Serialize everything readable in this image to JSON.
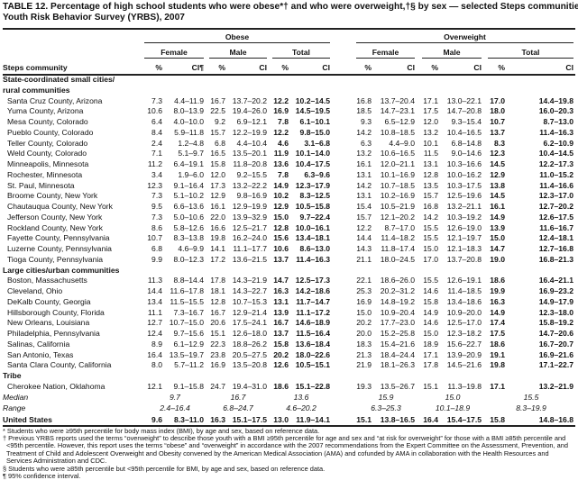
{
  "title": {
    "line1": "TABLE 12. Percentage of high school students who were obese*† and who were overweight,†§ by sex — selected Steps communities,",
    "line2": "Youth Risk Behavior Survey (YRBS), 2007"
  },
  "header": {
    "obese": "Obese",
    "overweight": "Overweight",
    "female": "Female",
    "male": "Male",
    "total": "Total",
    "row_label": "Steps community",
    "pct": "%",
    "ci_first": "CI¶",
    "ci": "CI"
  },
  "sections": [
    {
      "label_lines": [
        "State-coordinated small cities/",
        "rural communities"
      ],
      "rows": [
        {
          "name": "Santa Cruz County, Arizona",
          "values": [
            "7.3",
            "4.4–11.9",
            "16.7",
            "13.7–20.2",
            "12.2",
            "10.2–14.5",
            "16.8",
            "13.7–20.4",
            "17.1",
            "13.0–22.1",
            "17.0",
            "14.4–19.8"
          ]
        },
        {
          "name": "Yuma County, Arizona",
          "values": [
            "10.6",
            "8.0–13.9",
            "22.5",
            "19.4–26.0",
            "16.9",
            "14.5–19.5",
            "18.5",
            "14.7–23.1",
            "17.5",
            "14.7–20.8",
            "18.0",
            "16.0–20.3"
          ]
        },
        {
          "name": "Mesa County, Colorado",
          "values": [
            "6.4",
            "4.0–10.0",
            "9.2",
            "6.9–12.1",
            "7.8",
            "6.1–10.1",
            "9.3",
            "6.5–12.9",
            "12.0",
            "9.3–15.4",
            "10.7",
            "8.7–13.0"
          ]
        },
        {
          "name": "Pueblo County, Colorado",
          "values": [
            "8.4",
            "5.9–11.8",
            "15.7",
            "12.2–19.9",
            "12.2",
            "9.8–15.0",
            "14.2",
            "10.8–18.5",
            "13.2",
            "10.4–16.5",
            "13.7",
            "11.4–16.3"
          ]
        },
        {
          "name": "Teller County, Colorado",
          "values": [
            "2.4",
            "1.2–4.8",
            "6.8",
            "4.4–10.4",
            "4.6",
            "3.1–6.8",
            "6.3",
            "4.4–9.0",
            "10.1",
            "6.8–14.8",
            "8.3",
            "6.2–10.9"
          ]
        },
        {
          "name": "Weld County, Colorado",
          "values": [
            "7.1",
            "5.1–9.7",
            "16.5",
            "13.5–20.1",
            "11.9",
            "10.1–14.0",
            "13.2",
            "10.6–16.5",
            "11.5",
            "9.0–14.6",
            "12.3",
            "10.4–14.5"
          ]
        },
        {
          "name": "Minneapolis, Minnesota",
          "values": [
            "11.2",
            "6.4–19.1",
            "15.8",
            "11.8–20.8",
            "13.6",
            "10.4–17.5",
            "16.1",
            "12.0–21.1",
            "13.1",
            "10.3–16.6",
            "14.5",
            "12.2–17.3"
          ]
        },
        {
          "name": "Rochester, Minnesota",
          "values": [
            "3.4",
            "1.9–6.0",
            "12.0",
            "9.2–15.5",
            "7.8",
            "6.3–9.6",
            "13.1",
            "10.1–16.9",
            "12.8",
            "10.0–16.2",
            "12.9",
            "11.0–15.2"
          ]
        },
        {
          "name": "St. Paul, Minnesota",
          "values": [
            "12.3",
            "9.1–16.4",
            "17.3",
            "13.2–22.2",
            "14.9",
            "12.3–17.9",
            "14.2",
            "10.7–18.5",
            "13.5",
            "10.3–17.5",
            "13.8",
            "11.4–16.6"
          ]
        },
        {
          "name": "Broome County, New York",
          "values": [
            "7.3",
            "5.1–10.2",
            "12.9",
            "9.8–16.9",
            "10.2",
            "8.3–12.5",
            "13.1",
            "10.2–16.9",
            "15.7",
            "12.5–19.6",
            "14.5",
            "12.3–17.0"
          ]
        },
        {
          "name": "Chautauqua County, New York",
          "values": [
            "9.5",
            "6.6–13.6",
            "16.1",
            "12.9–19.9",
            "12.9",
            "10.5–15.8",
            "15.4",
            "10.5–21.9",
            "16.8",
            "13.2–21.1",
            "16.1",
            "12.7–20.2"
          ]
        },
        {
          "name": "Jefferson County, New York",
          "values": [
            "7.3",
            "5.0–10.6",
            "22.0",
            "13.9–32.9",
            "15.0",
            "9.7–22.4",
            "15.7",
            "12.1–20.2",
            "14.2",
            "10.3–19.2",
            "14.9",
            "12.6–17.5"
          ]
        },
        {
          "name": "Rockland County, New York",
          "values": [
            "8.6",
            "5.8–12.6",
            "16.6",
            "12.5–21.7",
            "12.8",
            "10.0–16.1",
            "12.2",
            "8.7–17.0",
            "15.5",
            "12.6–19.0",
            "13.9",
            "11.6–16.7"
          ]
        },
        {
          "name": "Fayette County, Pennsylvania",
          "values": [
            "10.7",
            "8.3–13.8",
            "19.8",
            "16.2–24.0",
            "15.6",
            "13.4–18.1",
            "14.4",
            "11.4–18.2",
            "15.5",
            "12.1–19.7",
            "15.0",
            "12.4–18.1"
          ]
        },
        {
          "name": "Luzerne County, Pennsylvania",
          "values": [
            "6.8",
            "4.6–9.9",
            "14.1",
            "11.1–17.7",
            "10.6",
            "8.6–13.0",
            "14.3",
            "11.8–17.4",
            "15.0",
            "12.1–18.3",
            "14.7",
            "12.7–16.8"
          ]
        },
        {
          "name": "Tioga County, Pennsylvania",
          "values": [
            "9.9",
            "8.0–12.3",
            "17.2",
            "13.6–21.5",
            "13.7",
            "11.4–16.3",
            "21.1",
            "18.0–24.5",
            "17.0",
            "13.7–20.8",
            "19.0",
            "16.8–21.3"
          ]
        }
      ]
    },
    {
      "label_lines": [
        "Large cities/urban communities"
      ],
      "rows": [
        {
          "name": "Boston, Massachusetts",
          "values": [
            "11.3",
            "8.8–14.4",
            "17.8",
            "14.3–21.9",
            "14.7",
            "12.5–17.3",
            "22.1",
            "18.6–26.0",
            "15.5",
            "12.6–19.1",
            "18.6",
            "16.4–21.1"
          ]
        },
        {
          "name": "Cleveland, Ohio",
          "values": [
            "14.4",
            "11.6–17.8",
            "18.1",
            "14.3–22.7",
            "16.3",
            "14.2–18.6",
            "25.3",
            "20.2–31.2",
            "14.6",
            "11.4–18.5",
            "19.9",
            "16.9–23.2"
          ]
        },
        {
          "name": "DeKalb County, Georgia",
          "values": [
            "13.4",
            "11.5–15.5",
            "12.8",
            "10.7–15.3",
            "13.1",
            "11.7–14.7",
            "16.9",
            "14.8–19.2",
            "15.8",
            "13.4–18.6",
            "16.3",
            "14.9–17.9"
          ]
        },
        {
          "name": "Hillsborough County, Florida",
          "values": [
            "11.1",
            "7.3–16.7",
            "16.7",
            "12.9–21.4",
            "13.9",
            "11.1–17.2",
            "15.0",
            "10.9–20.4",
            "14.9",
            "10.9–20.0",
            "14.9",
            "12.3–18.0"
          ]
        },
        {
          "name": "New Orleans, Louisiana",
          "values": [
            "12.7",
            "10.7–15.0",
            "20.6",
            "17.5–24.1",
            "16.7",
            "14.6–18.9",
            "20.2",
            "17.7–23.0",
            "14.6",
            "12.5–17.0",
            "17.4",
            "15.8–19.2"
          ]
        },
        {
          "name": "Philadelphia, Pennsylvania",
          "values": [
            "12.4",
            "9.7–15.6",
            "15.1",
            "12.6–18.0",
            "13.7",
            "11.5–16.4",
            "20.0",
            "15.2–25.8",
            "15.0",
            "12.3–18.2",
            "17.5",
            "14.7–20.6"
          ]
        },
        {
          "name": "Salinas, California",
          "values": [
            "8.9",
            "6.1–12.9",
            "22.3",
            "18.8–26.2",
            "15.8",
            "13.6–18.4",
            "18.3",
            "15.4–21.6",
            "18.9",
            "15.6–22.7",
            "18.6",
            "16.7–20.7"
          ]
        },
        {
          "name": "San Antonio, Texas",
          "values": [
            "16.4",
            "13.5–19.7",
            "23.8",
            "20.5–27.5",
            "20.2",
            "18.0–22.6",
            "21.3",
            "18.4–24.4",
            "17.1",
            "13.9–20.9",
            "19.1",
            "16.9–21.6"
          ]
        },
        {
          "name": "Santa Clara County, California",
          "values": [
            "8.0",
            "5.7–11.2",
            "16.9",
            "13.5–20.8",
            "12.6",
            "10.5–15.1",
            "21.9",
            "18.1–26.3",
            "17.8",
            "14.5–21.6",
            "19.8",
            "17.1–22.7"
          ]
        }
      ]
    },
    {
      "label_lines": [
        "Tribe"
      ],
      "rows": [
        {
          "name": "Cherokee Nation, Oklahoma",
          "values": [
            "12.1",
            "9.1–15.8",
            "24.7",
            "19.4–31.0",
            "18.6",
            "15.1–22.8",
            "19.3",
            "13.5–26.7",
            "15.1",
            "11.3–19.8",
            "17.1",
            "13.2–21.9"
          ]
        }
      ]
    }
  ],
  "summary": {
    "median": {
      "label": "Median",
      "values": [
        "9.7",
        "16.7",
        "13.6",
        "15.9",
        "15.0",
        "15.5"
      ]
    },
    "range": {
      "label": "Range",
      "values": [
        "2.4–16.4",
        "6.8–24.7",
        "4.6–20.2",
        "6.3–25.3",
        "10.1–18.9",
        "8.3–19.9"
      ]
    },
    "us": {
      "label": "United States",
      "values": [
        "9.6",
        "8.3–11.0",
        "16.3",
        "15.1–17.5",
        "13.0",
        "11.9–14.1",
        "15.1",
        "13.8–16.5",
        "16.4",
        "15.4–17.5",
        "15.8",
        "14.8–16.8"
      ]
    }
  },
  "footnotes": [
    "* Students who were ≥95th percentile for body mass index (BMI), by age and sex, based on reference data.",
    "† Previous YRBS reports used the terms “overweight” to describe those youth with a BMI ≥95th percentile for age and sex and “at risk for overweight” for those with a BMI ≥85th percentile and <95th percentile. However, this report uses the terms “obese” and “overweight” in accordance with the 2007 recommendations from the Expert Committee on the Assessment, Prevention, and Treatment of Child and Adolescent Overweight and Obesity convened by the American Medical Association (AMA) and cofunded by AMA in collaboration with the Health Resources and Services Administration and CDC.",
    "§ Students who were ≥85th percentile but <95th percentile for BMI, by age and sex, based on reference data.",
    "¶ 95% confidence interval."
  ]
}
